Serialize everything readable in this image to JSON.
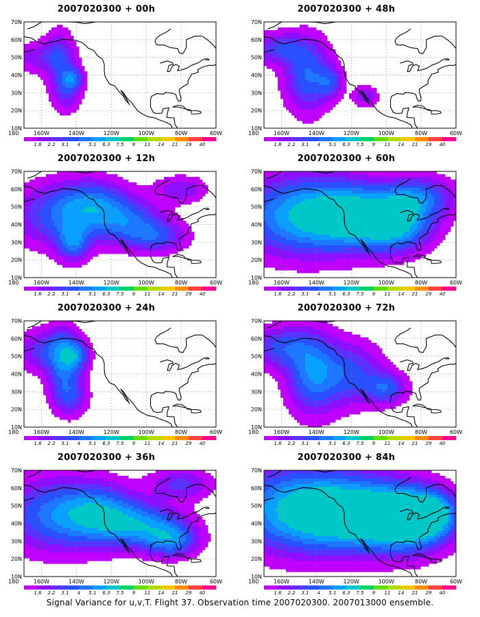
{
  "panels": [
    {
      "title": "2007020300 + 00h",
      "level": 0
    },
    {
      "title": "2007020300 + 48h",
      "level": 4
    },
    {
      "title": "2007020300 + 12h",
      "level": 1
    },
    {
      "title": "2007020300 + 60h",
      "level": 5
    },
    {
      "title": "2007020300 + 24h",
      "level": 2
    },
    {
      "title": "2007020300 + 72h",
      "level": 6
    },
    {
      "title": "2007020300 + 36h",
      "level": 3
    },
    {
      "title": "2007020300 + 84h",
      "level": 7
    }
  ],
  "lat_labels": [
    "10N",
    "20N",
    "30N",
    "40N",
    "50N",
    "60N",
    "70N"
  ],
  "lon_labels": [
    "180",
    "160W",
    "140W",
    "120W",
    "100W",
    "80W",
    "60W"
  ],
  "colorbar": {
    "labels": [
      "1.6",
      "2.2",
      "3.1",
      "4",
      "5.1",
      "6.3",
      "7.5",
      "9",
      "11",
      "14",
      "21",
      "29",
      "40"
    ],
    "colors": [
      "#c000ff",
      "#8c10ff",
      "#5a32ff",
      "#2850ff",
      "#1e78ff",
      "#0aa0ff",
      "#00c8c8",
      "#00d264",
      "#64dc00",
      "#b4dc00",
      "#f0c800",
      "#ff8c00",
      "#ff4040",
      "#ff0090"
    ]
  },
  "caption": "Signal Variance for u,v,T. Flight 37. Observation time 2007020300. 2007013000 ensemble."
}
